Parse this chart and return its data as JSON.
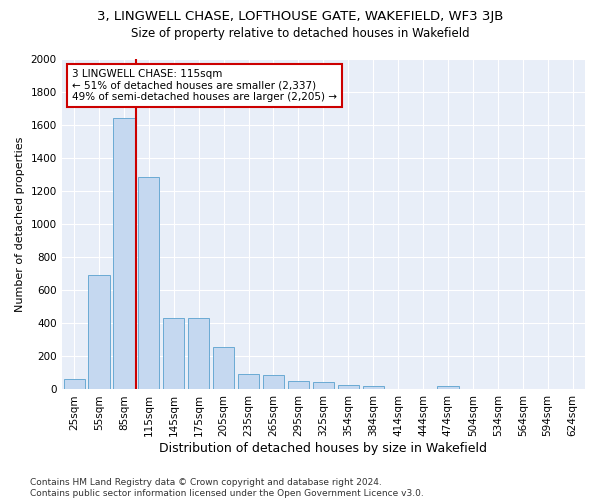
{
  "title1": "3, LINGWELL CHASE, LOFTHOUSE GATE, WAKEFIELD, WF3 3JB",
  "title2": "Size of property relative to detached houses in Wakefield",
  "xlabel": "Distribution of detached houses by size in Wakefield",
  "ylabel": "Number of detached properties",
  "categories": [
    "25sqm",
    "55sqm",
    "85sqm",
    "115sqm",
    "145sqm",
    "175sqm",
    "205sqm",
    "235sqm",
    "265sqm",
    "295sqm",
    "325sqm",
    "354sqm",
    "384sqm",
    "414sqm",
    "444sqm",
    "474sqm",
    "504sqm",
    "534sqm",
    "564sqm",
    "594sqm",
    "624sqm"
  ],
  "values": [
    65,
    690,
    1640,
    1285,
    435,
    435,
    255,
    95,
    85,
    50,
    45,
    30,
    20,
    0,
    0,
    20,
    0,
    0,
    0,
    0,
    0
  ],
  "bar_color": "#c5d8f0",
  "bar_edgecolor": "#6aaad4",
  "vline_x": 2.5,
  "vline_color": "#cc0000",
  "annotation_text": "3 LINGWELL CHASE: 115sqm\n← 51% of detached houses are smaller (2,337)\n49% of semi-detached houses are larger (2,205) →",
  "annotation_box_facecolor": "#ffffff",
  "annotation_box_edgecolor": "#cc0000",
  "ylim": [
    0,
    2000
  ],
  "yticks": [
    0,
    200,
    400,
    600,
    800,
    1000,
    1200,
    1400,
    1600,
    1800,
    2000
  ],
  "footer": "Contains HM Land Registry data © Crown copyright and database right 2024.\nContains public sector information licensed under the Open Government Licence v3.0.",
  "title1_fontsize": 9.5,
  "title2_fontsize": 8.5,
  "xlabel_fontsize": 9,
  "ylabel_fontsize": 8,
  "tick_fontsize": 7.5,
  "annotation_fontsize": 7.5,
  "footer_fontsize": 6.5,
  "bg_color": "#e8eef8"
}
